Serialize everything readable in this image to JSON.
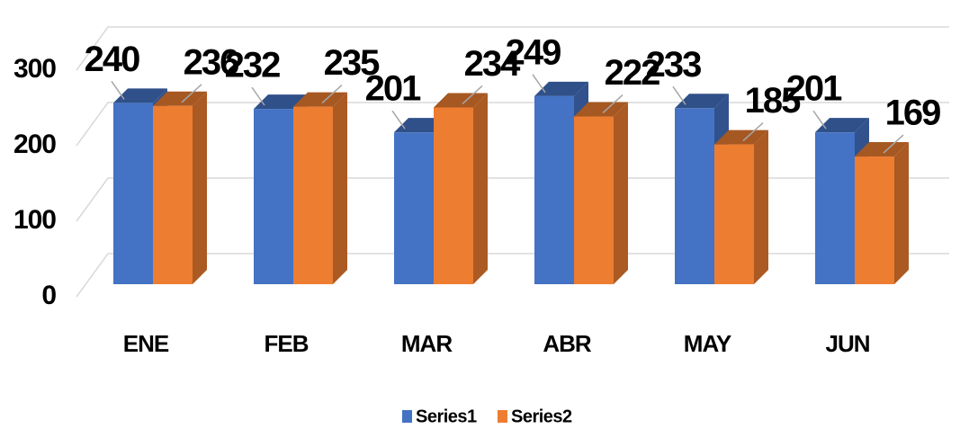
{
  "chart_data": {
    "type": "bar3d",
    "categories": [
      "ENE",
      "FEB",
      "MAR",
      "ABR",
      "MAY",
      "JUN"
    ],
    "series": [
      {
        "name": "Series1",
        "color": "#4472c4",
        "values": [
          240,
          232,
          201,
          249,
          233,
          201
        ]
      },
      {
        "name": "Series2",
        "color": "#ed7d31",
        "values": [
          236,
          235,
          234,
          222,
          185,
          169
        ]
      }
    ],
    "ylim": [
      0,
      300
    ],
    "yticks": [
      0,
      100,
      200,
      300
    ],
    "grid": true,
    "legend": "bottom"
  }
}
